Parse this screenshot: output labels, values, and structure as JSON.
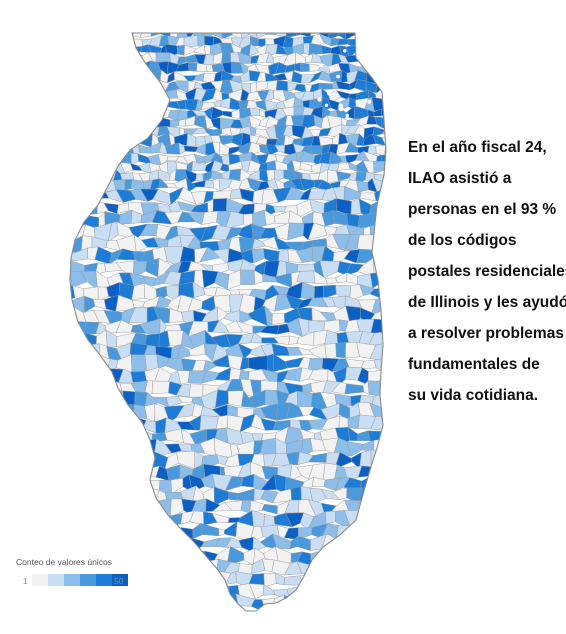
{
  "summary_lines": [
    "En el año fiscal 24,",
    "ILAO asistió a",
    "personas en el 93 %",
    "de los códigos",
    "postales residenciales",
    "de Illinois y les ayudó",
    "a resolver problemas",
    "fundamentales de",
    "su vida cotidiana."
  ],
  "legend": {
    "title": "Conteo de valores únicos",
    "min_label": "1",
    "max_label": "50",
    "ramp_colors": [
      "#f2f2f2",
      "#c9ddf3",
      "#8dbde9",
      "#4a99dd",
      "#1c7cd6",
      "#0a60c4"
    ]
  },
  "map": {
    "region": "Illinois",
    "unit": "zip-codes",
    "boundary_color": "#9a9a9a",
    "fill_weights": [
      0.3,
      0.2,
      0.16,
      0.13,
      0.13,
      0.08
    ]
  }
}
